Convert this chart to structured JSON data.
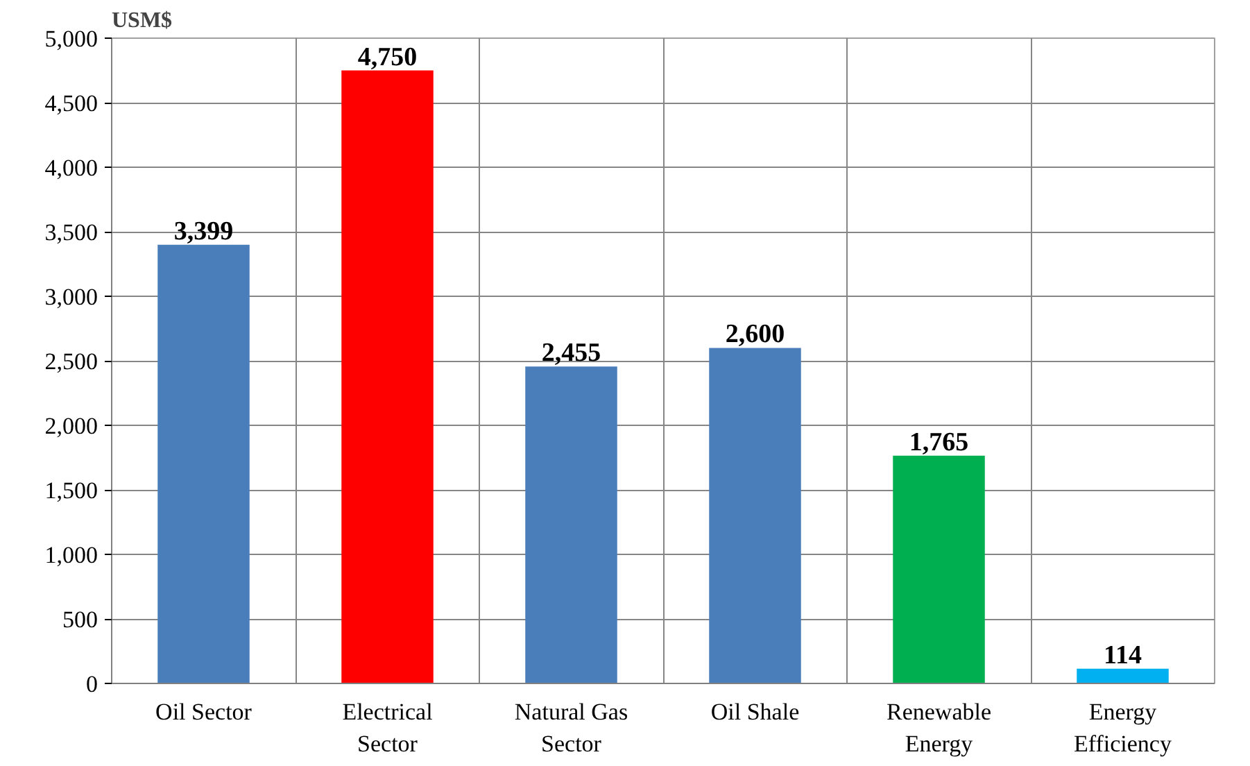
{
  "chart_data": {
    "type": "bar",
    "ylabel": "USM$",
    "categories": [
      "Oil Sector",
      "Electrical Sector",
      "Natural Gas Sector",
      "Oil Shale",
      "Renewable Energy",
      "Energy Efficiency"
    ],
    "values": [
      3399,
      4750,
      2455,
      2600,
      1765,
      114
    ],
    "colors": [
      "#4a7ebb",
      "#ff0000",
      "#4a7ebb",
      "#4a7ebb",
      "#00b050",
      "#00b0f0"
    ],
    "ylim": [
      0,
      5000
    ],
    "yticks": [
      {
        "value": 0,
        "label": "0"
      },
      {
        "value": 500,
        "label": "500"
      },
      {
        "value": 1000,
        "label": "1,000"
      },
      {
        "value": 1500,
        "label": "1,500"
      },
      {
        "value": 2000,
        "label": "2,000"
      },
      {
        "value": 2500,
        "label": "2,500"
      },
      {
        "value": 3000,
        "label": "3,000"
      },
      {
        "value": 3500,
        "label": "3,500"
      },
      {
        "value": 4000,
        "label": "4,000"
      },
      {
        "value": 4500,
        "label": "4,500"
      },
      {
        "value": 5000,
        "label": "5,000"
      }
    ],
    "value_labels": [
      "3,399",
      "4,750",
      "2,455",
      "2,600",
      "1,765",
      "114"
    ],
    "grid": true
  }
}
